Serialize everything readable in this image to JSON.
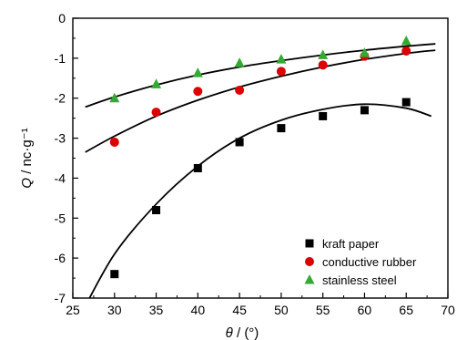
{
  "chart_data": {
    "type": "scatter",
    "title": "",
    "xlabel": {
      "symbol": "θ",
      "unit": " / (°)"
    },
    "ylabel": {
      "symbol": "Q",
      "unit": " / nc·g⁻¹"
    },
    "xlim": [
      25,
      70
    ],
    "ylim": [
      -7,
      0
    ],
    "xticks": [
      "25",
      "30",
      "35",
      "40",
      "45",
      "50",
      "55",
      "60",
      "65",
      "70"
    ],
    "yticks": [
      "0",
      "-1",
      "-2",
      "-3",
      "-4",
      "-5",
      "-6",
      "-7"
    ],
    "grid": false,
    "legend_position": "bottom-right",
    "series": [
      {
        "name": "kraft paper",
        "marker": "square",
        "color": "#000000",
        "x": [
          30,
          35,
          40,
          45,
          50,
          55,
          60,
          65
        ],
        "y": [
          -6.4,
          -4.8,
          -3.75,
          -3.1,
          -2.75,
          -2.45,
          -2.3,
          -2.1
        ],
        "fit": {
          "x": [
            26,
            30,
            35,
            40,
            45,
            50,
            55,
            60,
            65,
            68
          ],
          "y": [
            -7.4,
            -5.9,
            -4.65,
            -3.7,
            -3.0,
            -2.55,
            -2.28,
            -2.15,
            -2.25,
            -2.45
          ]
        }
      },
      {
        "name": "conductive rubber",
        "marker": "circle",
        "color": "#dd0000",
        "x": [
          30,
          35,
          40,
          45,
          50,
          55,
          60,
          65
        ],
        "y": [
          -3.1,
          -2.35,
          -1.83,
          -1.8,
          -1.33,
          -1.17,
          -0.95,
          -0.82
        ],
        "fit": {
          "x": [
            26.5,
            30,
            35,
            40,
            45,
            50,
            55,
            60,
            65,
            68.5
          ],
          "y": [
            -3.35,
            -2.95,
            -2.45,
            -2.05,
            -1.72,
            -1.45,
            -1.22,
            -1.03,
            -0.88,
            -0.8
          ]
        }
      },
      {
        "name": "stainless steel",
        "marker": "triangle",
        "color": "#33aa33",
        "x": [
          30,
          35,
          40,
          45,
          50,
          55,
          60,
          65
        ],
        "y": [
          -2.0,
          -1.65,
          -1.37,
          -1.12,
          -1.03,
          -0.92,
          -0.87,
          -0.57
        ],
        "fit": {
          "x": [
            26.5,
            30,
            35,
            40,
            45,
            50,
            55,
            60,
            65,
            68.5
          ],
          "y": [
            -2.22,
            -1.97,
            -1.67,
            -1.42,
            -1.22,
            -1.06,
            -0.92,
            -0.8,
            -0.7,
            -0.64
          ]
        }
      }
    ]
  }
}
